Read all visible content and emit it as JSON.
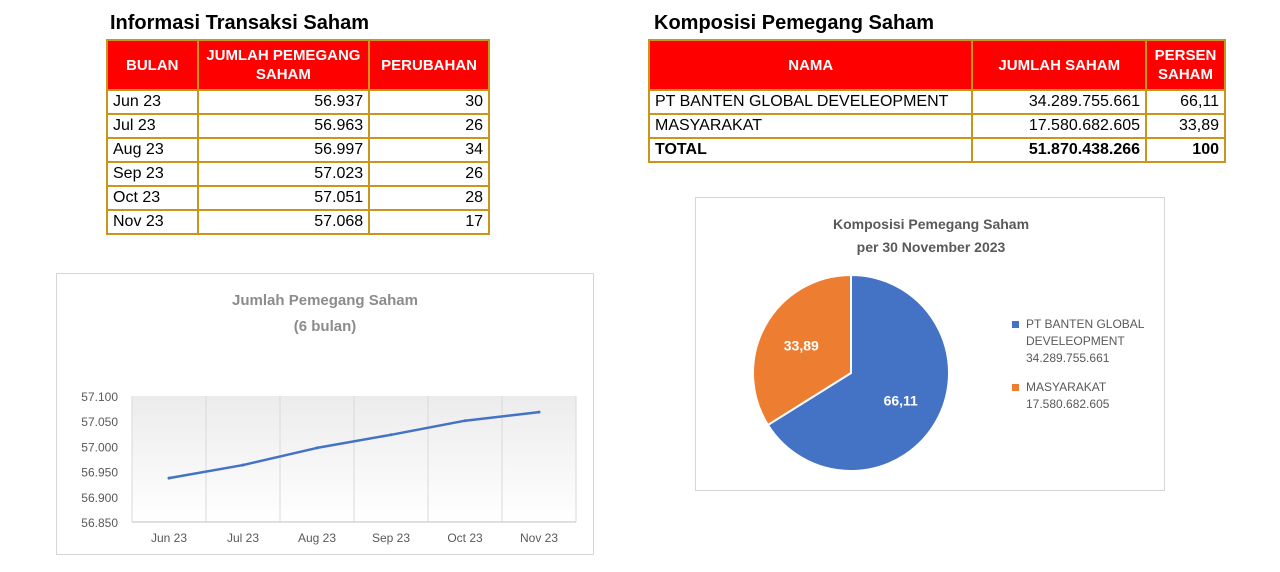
{
  "transaksi": {
    "title": "Informasi Transaksi Saham",
    "headers": [
      "BULAN",
      "JUMLAH PEMEGANG SAHAM",
      "PERUBAHAN"
    ],
    "rows": [
      {
        "bulan": "Jun 23",
        "jumlah": "56.937",
        "perubahan": "30"
      },
      {
        "bulan": "Jul 23",
        "jumlah": "56.963",
        "perubahan": "26"
      },
      {
        "bulan": "Aug 23",
        "jumlah": "56.997",
        "perubahan": "34"
      },
      {
        "bulan": "Sep 23",
        "jumlah": "57.023",
        "perubahan": "26"
      },
      {
        "bulan": "Oct 23",
        "jumlah": "57.051",
        "perubahan": "28"
      },
      {
        "bulan": "Nov 23",
        "jumlah": "57.068",
        "perubahan": "17"
      }
    ]
  },
  "komposisi": {
    "title": "Komposisi Pemegang Saham",
    "headers": [
      "NAMA",
      "JUMLAH SAHAM",
      "PERSEN SAHAM"
    ],
    "rows": [
      {
        "nama": "PT BANTEN GLOBAL DEVELEOPMENT",
        "jumlah": "34.289.755.661",
        "persen": "66,11"
      },
      {
        "nama": "MASYARAKAT",
        "jumlah": "17.580.682.605",
        "persen": "33,89"
      }
    ],
    "total": {
      "nama": "TOTAL",
      "jumlah": "51.870.438.266",
      "persen": "100"
    }
  },
  "chart_data": [
    {
      "type": "line",
      "title": "Jumlah Pemegang Saham",
      "subtitle": "(6 bulan)",
      "categories": [
        "Jun 23",
        "Jul 23",
        "Aug 23",
        "Sep 23",
        "Oct 23",
        "Nov 23"
      ],
      "series": [
        {
          "values": [
            56937,
            56963,
            56997,
            57023,
            57051,
            57068
          ],
          "color": "#4472c4"
        }
      ],
      "ylim": [
        56850,
        57100
      ],
      "yticks": [
        56850,
        56900,
        56950,
        57000,
        57050,
        57100
      ],
      "ytick_labels": [
        "56.850",
        "56.900",
        "56.950",
        "57.000",
        "57.050",
        "57.100"
      ],
      "grid": "vertical"
    },
    {
      "type": "pie",
      "title": "Komposisi Pemegang Saham",
      "subtitle": "per 30 November 2023",
      "slices": [
        {
          "name": "PT BANTEN GLOBAL DEVELEOPMENT",
          "value": 66.11,
          "label": "66,11",
          "amount": "34.289.755.661",
          "color": "#4472c4"
        },
        {
          "name": "MASYARAKAT",
          "value": 33.89,
          "label": "33,89",
          "amount": "17.580.682.605",
          "color": "#ed7d31"
        }
      ],
      "legend": [
        {
          "lines": [
            "PT BANTEN GLOBAL",
            "DEVELEOPMENT",
            "34.289.755.661"
          ],
          "color": "#4472c4"
        },
        {
          "lines": [
            "MASYARAKAT",
            "17.580.682.605"
          ],
          "color": "#ed7d31"
        }
      ],
      "legend_position": "right"
    }
  ]
}
